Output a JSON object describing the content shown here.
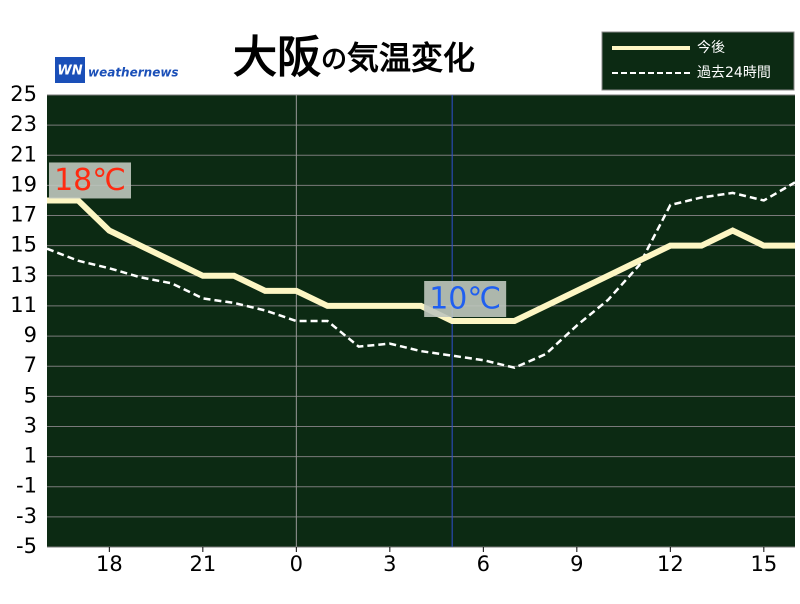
{
  "chart_data": {
    "type": "line",
    "title_parts": [
      "大阪",
      "の",
      "気温変化"
    ],
    "brand": {
      "logo": "WN",
      "name": "weathernews"
    },
    "x": [
      16,
      17,
      18,
      19,
      20,
      21,
      22,
      23,
      24,
      25,
      26,
      27,
      28,
      29,
      30,
      31,
      32,
      33,
      34,
      35,
      36,
      37,
      38,
      39,
      40
    ],
    "series": [
      {
        "name": "今後",
        "color": "#fdf6c3",
        "style": "solid",
        "values": [
          18,
          18,
          16,
          15,
          14,
          13,
          13,
          12,
          12,
          11,
          11,
          11,
          11,
          10,
          10,
          10,
          11,
          12,
          13,
          14,
          15,
          15,
          16,
          15,
          15
        ]
      },
      {
        "name": "過去24時間",
        "color": "#ffffff",
        "style": "dashed",
        "values": [
          14.8,
          14.0,
          13.5,
          12.9,
          12.5,
          11.5,
          11.2,
          10.7,
          10.0,
          10.0,
          8.3,
          8.5,
          8.0,
          7.7,
          7.4,
          6.9,
          7.8,
          9.7,
          11.4,
          13.7,
          17.7,
          18.2,
          18.5,
          18.0,
          19.2
        ]
      }
    ],
    "annotations": [
      {
        "text": "18℃",
        "color": "#ff2a10"
      },
      {
        "text": "10℃",
        "color": "#1f5ff0"
      }
    ],
    "now_x": 29,
    "xlim": [
      16,
      40
    ],
    "xticks": [
      18,
      21,
      {
        "value": 24,
        "label": "0"
      },
      {
        "value": 27,
        "label": "3"
      },
      {
        "value": 30,
        "label": "6"
      },
      {
        "value": 33,
        "label": "9"
      },
      {
        "value": 36,
        "label": "12"
      },
      {
        "value": 39,
        "label": "15"
      }
    ],
    "ylim": [
      -5,
      25
    ],
    "yticks": [
      25,
      23,
      21,
      19,
      17,
      15,
      13,
      11,
      9,
      7,
      5,
      3,
      1,
      -1,
      -3,
      -5
    ],
    "grid": true
  }
}
